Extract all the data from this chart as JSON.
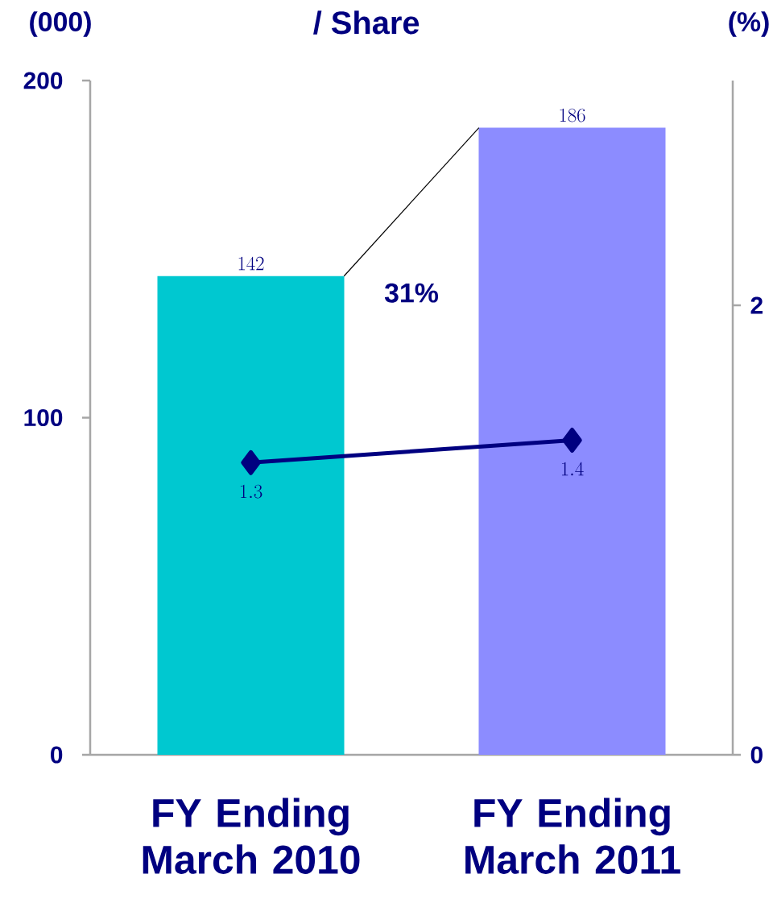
{
  "chart_data": {
    "type": "bar",
    "title": "/ Share",
    "ylabel": "(000)",
    "y2label": "(%)",
    "categories": [
      "FY Ending March 2010",
      "FY Ending March 2011"
    ],
    "series": [
      {
        "values": [
          142,
          186
        ],
        "colors": [
          "#00c8d0",
          "#8c8cff"
        ]
      },
      {
        "type": "line",
        "axis": "y2",
        "values": [
          1.3,
          1.4
        ],
        "color": "#000080"
      }
    ],
    "ylim": [
      0,
      200
    ],
    "yticks": [
      0,
      100,
      200
    ],
    "y2lim": [
      0,
      3
    ],
    "y2ticks": [
      0,
      2
    ],
    "annotations": [
      "31%"
    ],
    "data_labels": true,
    "marker": "diamond",
    "grid": false
  }
}
